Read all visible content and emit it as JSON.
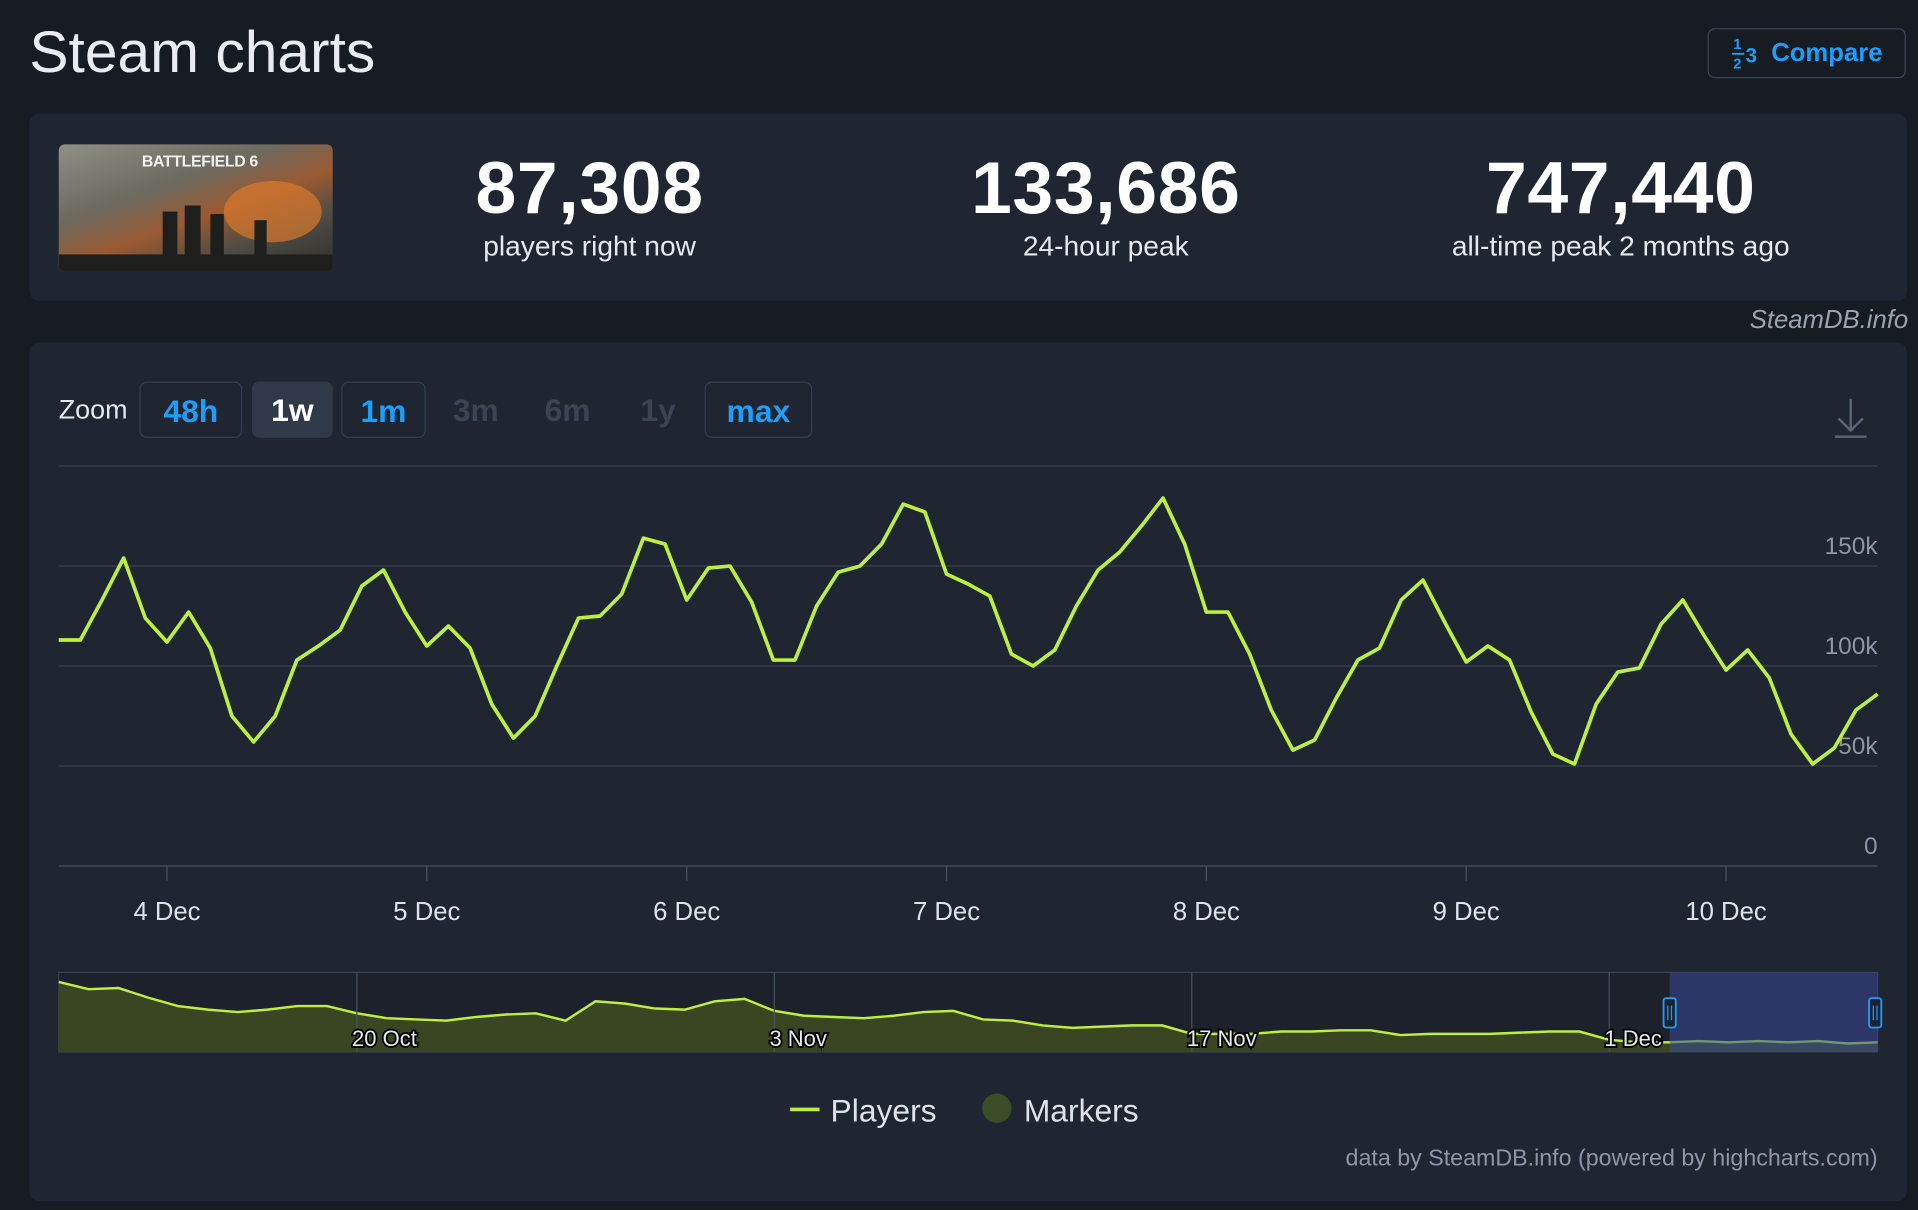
{
  "header": {
    "title": "Steam charts",
    "compare": "Compare"
  },
  "game": {
    "name": "BATTLEFIELD 6"
  },
  "stats": [
    {
      "value": "87,308",
      "label": "players right now"
    },
    {
      "value": "133,686",
      "label": "24-hour peak"
    },
    {
      "value": "747,440",
      "label": "all-time peak 2 months ago"
    }
  ],
  "source": "SteamDB.info",
  "zoom": {
    "label": "Zoom",
    "options": [
      "48h",
      "1w",
      "1m",
      "3m",
      "6m",
      "1y",
      "max"
    ]
  },
  "chart_data": {
    "type": "line",
    "categories": [
      null,
      null,
      null,
      null,
      null,
      "4 Dec",
      null,
      null,
      null,
      null,
      null,
      null,
      null,
      null,
      null,
      null,
      null,
      "5 Dec",
      null,
      null,
      null,
      null,
      null,
      null,
      null,
      null,
      null,
      null,
      null,
      "6 Dec",
      null,
      null,
      null,
      null,
      null,
      null,
      null,
      null,
      null,
      null,
      null,
      "7 Dec",
      null,
      null,
      null,
      null,
      null,
      null,
      null,
      null,
      null,
      null,
      null,
      "8 Dec",
      null,
      null,
      null,
      null,
      null,
      null,
      null,
      null,
      null,
      null,
      null,
      "9 Dec",
      null,
      null,
      null,
      null,
      null,
      null,
      null,
      null,
      null,
      null,
      null,
      "10 Dec",
      null,
      null,
      null,
      null,
      null,
      null,
      null
    ],
    "series": [
      {
        "name": "Players",
        "color": "#bdf03e",
        "values": [
          113000,
          113000,
          133000,
          154000,
          124000,
          112000,
          127000,
          109000,
          75000,
          62000,
          75000,
          103000,
          110000,
          118000,
          140000,
          148000,
          127000,
          110000,
          120000,
          109000,
          81000,
          64000,
          75000,
          100000,
          124000,
          125000,
          136000,
          164000,
          161000,
          133000,
          149000,
          150000,
          132000,
          103000,
          103000,
          130000,
          147000,
          150000,
          161000,
          181000,
          177000,
          146000,
          141000,
          135000,
          106000,
          100000,
          108000,
          130000,
          148000,
          157000,
          170000,
          184000,
          161000,
          127000,
          127000,
          106000,
          78000,
          58000,
          63000,
          84000,
          103000,
          109000,
          133000,
          143000,
          122000,
          102000,
          110000,
          103000,
          77000,
          56000,
          51000,
          81000,
          97000,
          99000,
          121000,
          133000,
          115000,
          98000,
          108000,
          94000,
          66000,
          51000,
          59000,
          78000,
          86000
        ]
      }
    ],
    "ylim": [
      0,
      200000
    ],
    "yticks": [
      0,
      {
        "value": 50000,
        "label": "50k"
      },
      {
        "value": 100000,
        "label": "100k"
      },
      {
        "value": 150000,
        "label": "150k"
      }
    ],
    "grid": true,
    "marker_legend": {
      "name": "Markers",
      "color": "#3a4d27"
    },
    "credit": "data by SteamDB.info (powered by highcharts.com)",
    "navigator": {
      "type": "area",
      "color": "#bdf03e",
      "fill": "#3a4522",
      "categories": [
        null,
        null,
        null,
        null,
        null,
        null,
        null,
        null,
        null,
        null,
        "20 Oct",
        null,
        null,
        null,
        null,
        null,
        null,
        null,
        null,
        null,
        null,
        null,
        null,
        null,
        "3 Nov",
        null,
        null,
        null,
        null,
        null,
        null,
        null,
        null,
        null,
        null,
        null,
        null,
        null,
        "17 Nov",
        null,
        null,
        null,
        null,
        null,
        null,
        null,
        null,
        null,
        null,
        null,
        null,
        null,
        "1 Dec",
        null,
        null,
        null,
        null,
        null,
        null,
        null,
        null,
        null
      ],
      "values": [
        748000,
        671000,
        684000,
        581000,
        490000,
        452000,
        426000,
        452000,
        490000,
        490000,
        413000,
        361000,
        348000,
        335000,
        374000,
        400000,
        413000,
        335000,
        542000,
        516000,
        464000,
        452000,
        542000,
        568000,
        439000,
        387000,
        374000,
        361000,
        387000,
        426000,
        439000,
        348000,
        335000,
        284000,
        258000,
        271000,
        284000,
        284000,
        194000,
        194000,
        194000,
        219000,
        219000,
        232000,
        232000,
        181000,
        194000,
        194000,
        194000,
        206000,
        219000,
        219000,
        129000,
        103000,
        103000,
        116000,
        103000,
        116000,
        103000,
        116000,
        90000,
        103000
      ],
      "ylim": [
        0,
        850000
      ]
    }
  }
}
